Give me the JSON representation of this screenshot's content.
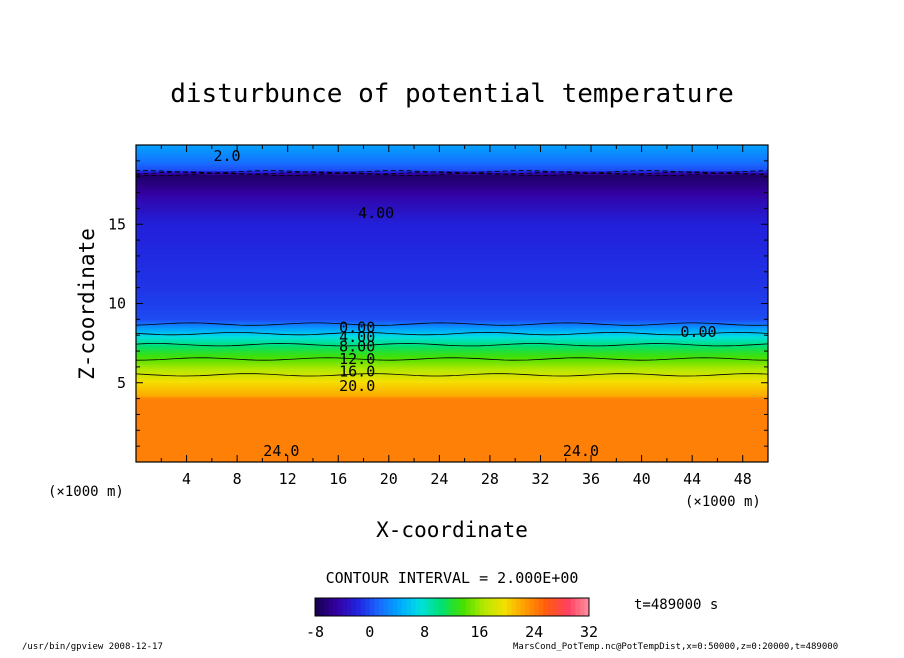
{
  "chart_data": {
    "type": "heatmap",
    "title": "disturbunce of potential temperature",
    "xlabel": "X-coordinate",
    "ylabel": "Z-coordinate",
    "x_unit": "(×1000 m)",
    "z_unit": "(×1000 m)",
    "xlim": [
      0,
      50
    ],
    "ylim": [
      0,
      20
    ],
    "x_ticks": [
      4,
      8,
      12,
      16,
      20,
      24,
      28,
      32,
      36,
      40,
      44,
      48
    ],
    "y_ticks": [
      5,
      10,
      15
    ],
    "contour_interval_text": "CONTOUR INTERVAL = 2.000E+00",
    "time_label": "t=489000 s",
    "colorbar": {
      "min": -8,
      "max": 32,
      "ticks": [
        -8,
        0,
        8,
        16,
        24,
        32
      ],
      "colors": [
        "#14004b",
        "#3400a0",
        "#2222dd",
        "#1a66ff",
        "#00a8ff",
        "#00e0e0",
        "#00e070",
        "#44e000",
        "#b4e800",
        "#f4e000",
        "#ff9a00",
        "#ff5a10",
        "#ff4060",
        "#ff90a0"
      ]
    },
    "contour_labels": [
      {
        "text": "2.0",
        "x": 7.2,
        "z": 19.3
      },
      {
        "text": "4.00",
        "x": 19.0,
        "z": 15.7
      },
      {
        "text": "0.00",
        "x": 17.5,
        "z": 8.5
      },
      {
        "text": "4.00",
        "x": 17.5,
        "z": 7.9
      },
      {
        "text": "8.00",
        "x": 17.5,
        "z": 7.3
      },
      {
        "text": "12.0",
        "x": 17.5,
        "z": 6.5
      },
      {
        "text": "16.0",
        "x": 17.5,
        "z": 5.7
      },
      {
        "text": "20.0",
        "x": 17.5,
        "z": 4.8
      },
      {
        "text": "0.00",
        "x": 44.5,
        "z": 8.2
      },
      {
        "text": "24.0",
        "x": 11.5,
        "z": 0.7
      },
      {
        "text": "24.0",
        "x": 35.2,
        "z": 0.7
      }
    ],
    "field_profile": [
      {
        "z": 0.0,
        "value": 24
      },
      {
        "z": 4.0,
        "value": 24
      },
      {
        "z": 4.2,
        "value": 22
      },
      {
        "z": 5.0,
        "value": 20
      },
      {
        "z": 6.0,
        "value": 16
      },
      {
        "z": 7.0,
        "value": 12
      },
      {
        "z": 7.8,
        "value": 8
      },
      {
        "z": 8.4,
        "value": 4
      },
      {
        "z": 9.0,
        "value": 0
      },
      {
        "z": 11.0,
        "value": -1
      },
      {
        "z": 15.0,
        "value": -2
      },
      {
        "z": 16.5,
        "value": -4
      },
      {
        "z": 17.5,
        "value": -6
      },
      {
        "z": 18.1,
        "value": -7
      },
      {
        "z": 18.4,
        "value": 0
      },
      {
        "z": 19.0,
        "value": 2
      },
      {
        "z": 20.0,
        "value": 4
      }
    ]
  },
  "footer": {
    "left": "/usr/bin/gpview   2008-12-17",
    "right": "MarsCond_PotTemp.nc@PotTempDist,x=0:50000,z=0:20000,t=489000"
  }
}
